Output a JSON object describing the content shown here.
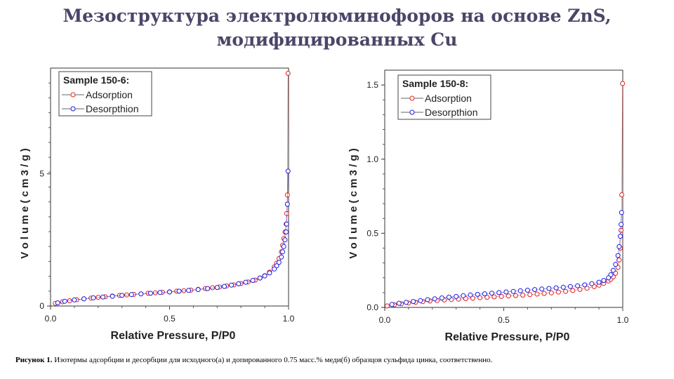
{
  "title": {
    "line1": "Мезоструктура электролюминофоров на основе ZnS,",
    "line2": "модифицированных Cu"
  },
  "caption": {
    "label": "Рисунок 1.",
    "text": " Изотермы адсорбции и десорбции для исходного(а) и допированного 0.75 масс.% меди(б) образцов сульфида цинка, соответственно."
  },
  "colors": {
    "adsorption": "#e02020",
    "desorption": "#1a1ae0",
    "title": "#4a4668"
  },
  "chart_data": [
    {
      "type": "scatter",
      "legend_title": "Sample 150-6:",
      "xlabel": "Relative Pressure, P/P0",
      "ylabel": "V o l u m e ( c m 3 / g )",
      "xlim": [
        0,
        1.0
      ],
      "ylim": [
        0,
        9
      ],
      "xticks": [
        "0.0",
        "0.5",
        "1.0"
      ],
      "yticks": [
        "0",
        "5"
      ],
      "legend_position": "top-left",
      "series": [
        {
          "name": "Adsorption",
          "x": [
            0.02,
            0.05,
            0.08,
            0.11,
            0.14,
            0.17,
            0.2,
            0.23,
            0.26,
            0.29,
            0.32,
            0.35,
            0.38,
            0.41,
            0.44,
            0.47,
            0.5,
            0.53,
            0.56,
            0.59,
            0.62,
            0.65,
            0.68,
            0.71,
            0.74,
            0.77,
            0.8,
            0.83,
            0.86,
            0.88,
            0.9,
            0.92,
            0.94,
            0.95,
            0.96,
            0.97,
            0.975,
            0.98,
            0.985,
            0.99,
            0.992,
            0.995,
            0.998
          ],
          "y": [
            0.1,
            0.16,
            0.2,
            0.24,
            0.27,
            0.3,
            0.33,
            0.35,
            0.38,
            0.4,
            0.42,
            0.44,
            0.46,
            0.48,
            0.5,
            0.52,
            0.54,
            0.56,
            0.58,
            0.6,
            0.63,
            0.66,
            0.69,
            0.72,
            0.76,
            0.8,
            0.85,
            0.91,
            0.98,
            1.06,
            1.15,
            1.28,
            1.48,
            1.62,
            1.8,
            2.05,
            2.3,
            2.55,
            2.8,
            3.1,
            3.5,
            4.2,
            8.8
          ]
        },
        {
          "name": "Desorpthion",
          "x": [
            0.998,
            0.995,
            0.992,
            0.99,
            0.985,
            0.98,
            0.975,
            0.97,
            0.96,
            0.95,
            0.94,
            0.92,
            0.9,
            0.88,
            0.85,
            0.82,
            0.79,
            0.76,
            0.73,
            0.7,
            0.66,
            0.62,
            0.58,
            0.54,
            0.5,
            0.46,
            0.42,
            0.38,
            0.34,
            0.3,
            0.26,
            0.22,
            0.18,
            0.14,
            0.1,
            0.06,
            0.03
          ],
          "y": [
            5.1,
            3.85,
            3.1,
            2.8,
            2.5,
            2.25,
            2.05,
            1.85,
            1.65,
            1.52,
            1.4,
            1.25,
            1.14,
            1.06,
            0.97,
            0.9,
            0.84,
            0.79,
            0.74,
            0.7,
            0.66,
            0.62,
            0.59,
            0.56,
            0.53,
            0.51,
            0.48,
            0.46,
            0.43,
            0.4,
            0.37,
            0.34,
            0.31,
            0.27,
            0.23,
            0.18,
            0.12
          ]
        }
      ]
    },
    {
      "type": "scatter",
      "legend_title": "Sample 150-8:",
      "xlabel": "Relative Pressure, P/P0",
      "ylabel": "V o l u m e ( c m 3 / g )",
      "xlim": [
        0,
        1.0
      ],
      "ylim": [
        0,
        1.6
      ],
      "xticks": [
        "0.0",
        "0.5",
        "1.0"
      ],
      "yticks": [
        "0.0",
        "0.5",
        "1.0",
        "1.5"
      ],
      "legend_position": "top-left",
      "series": [
        {
          "name": "Adsorption",
          "x": [
            0.01,
            0.04,
            0.07,
            0.1,
            0.13,
            0.16,
            0.19,
            0.22,
            0.25,
            0.28,
            0.31,
            0.34,
            0.37,
            0.4,
            0.43,
            0.46,
            0.49,
            0.52,
            0.55,
            0.58,
            0.61,
            0.64,
            0.67,
            0.7,
            0.73,
            0.76,
            0.79,
            0.82,
            0.85,
            0.88,
            0.9,
            0.92,
            0.94,
            0.95,
            0.96,
            0.97,
            0.98,
            0.985,
            0.99,
            0.993,
            0.996,
            0.999
          ],
          "y": [
            0.01,
            0.018,
            0.024,
            0.03,
            0.035,
            0.039,
            0.043,
            0.046,
            0.05,
            0.053,
            0.056,
            0.059,
            0.062,
            0.065,
            0.068,
            0.071,
            0.074,
            0.077,
            0.08,
            0.083,
            0.086,
            0.09,
            0.094,
            0.098,
            0.103,
            0.108,
            0.114,
            0.121,
            0.129,
            0.14,
            0.15,
            0.162,
            0.178,
            0.19,
            0.206,
            0.23,
            0.27,
            0.32,
            0.4,
            0.52,
            0.76,
            1.51
          ]
        },
        {
          "name": "Desorpthion",
          "x": [
            0.995,
            0.993,
            0.99,
            0.985,
            0.98,
            0.97,
            0.96,
            0.95,
            0.94,
            0.92,
            0.9,
            0.87,
            0.84,
            0.81,
            0.78,
            0.75,
            0.72,
            0.69,
            0.66,
            0.63,
            0.6,
            0.57,
            0.54,
            0.51,
            0.48,
            0.45,
            0.42,
            0.39,
            0.36,
            0.33,
            0.3,
            0.27,
            0.24,
            0.21,
            0.18,
            0.15,
            0.12,
            0.09,
            0.06,
            0.03
          ],
          "y": [
            0.64,
            0.56,
            0.48,
            0.41,
            0.35,
            0.29,
            0.25,
            0.22,
            0.2,
            0.182,
            0.17,
            0.16,
            0.152,
            0.146,
            0.141,
            0.136,
            0.132,
            0.128,
            0.124,
            0.12,
            0.116,
            0.112,
            0.108,
            0.104,
            0.1,
            0.096,
            0.092,
            0.088,
            0.084,
            0.079,
            0.074,
            0.069,
            0.064,
            0.058,
            0.052,
            0.046,
            0.04,
            0.034,
            0.028,
            0.02
          ]
        }
      ]
    }
  ]
}
